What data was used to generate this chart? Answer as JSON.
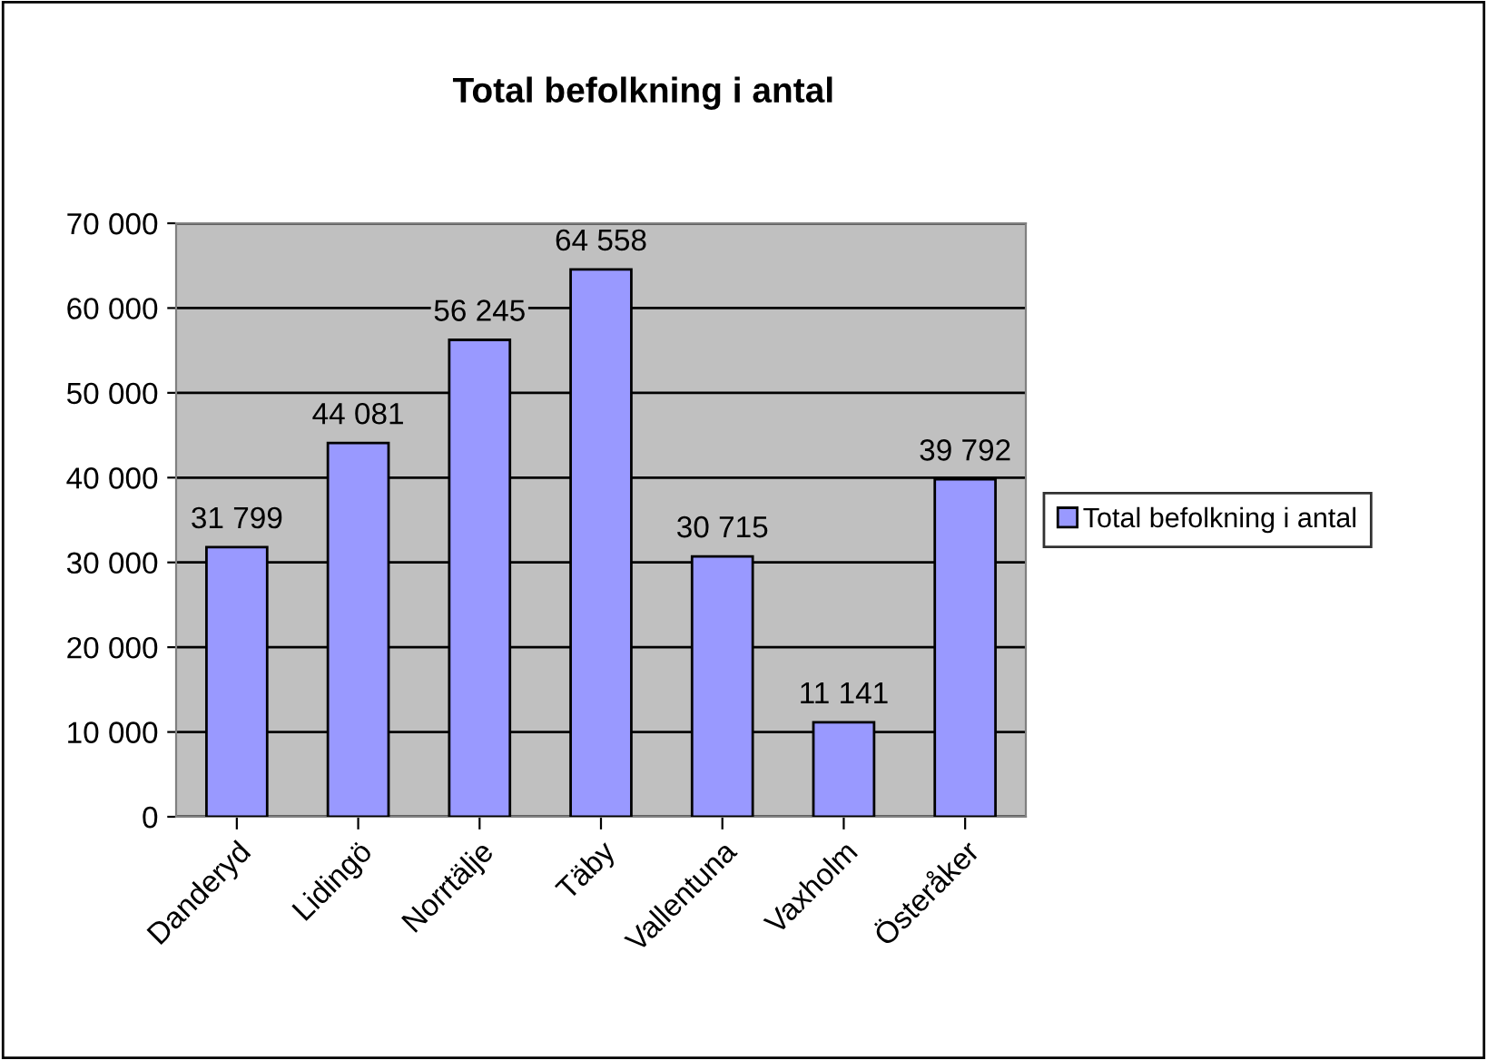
{
  "chart_data": {
    "type": "bar",
    "title": "Total befolkning i antal",
    "categories": [
      "Danderyd",
      "Lidingö",
      "Norrtälje",
      "Täby",
      "Vallentuna",
      "Vaxholm",
      "Österåker"
    ],
    "series": [
      {
        "name": "Total befolkning i antal",
        "color": "#9999ff",
        "values": [
          31799,
          44081,
          56245,
          64558,
          30715,
          11141,
          39792
        ],
        "value_labels": [
          "31 799",
          "44 081",
          "56 245",
          "64 558",
          "30 715",
          "11 141",
          "39 792"
        ]
      }
    ],
    "ylim": [
      0,
      70000
    ],
    "yticks": [
      0,
      {
        "value": 10000,
        "label": "10 000"
      },
      {
        "value": 20000,
        "label": "20 000"
      },
      {
        "value": 30000,
        "label": "30 000"
      },
      {
        "value": 40000,
        "label": "40 000"
      },
      {
        "value": 50000,
        "label": "50 000"
      },
      {
        "value": 60000,
        "label": "60 000"
      },
      {
        "value": 70000,
        "label": "70 000"
      }
    ],
    "grid": "y",
    "legend": "right"
  }
}
